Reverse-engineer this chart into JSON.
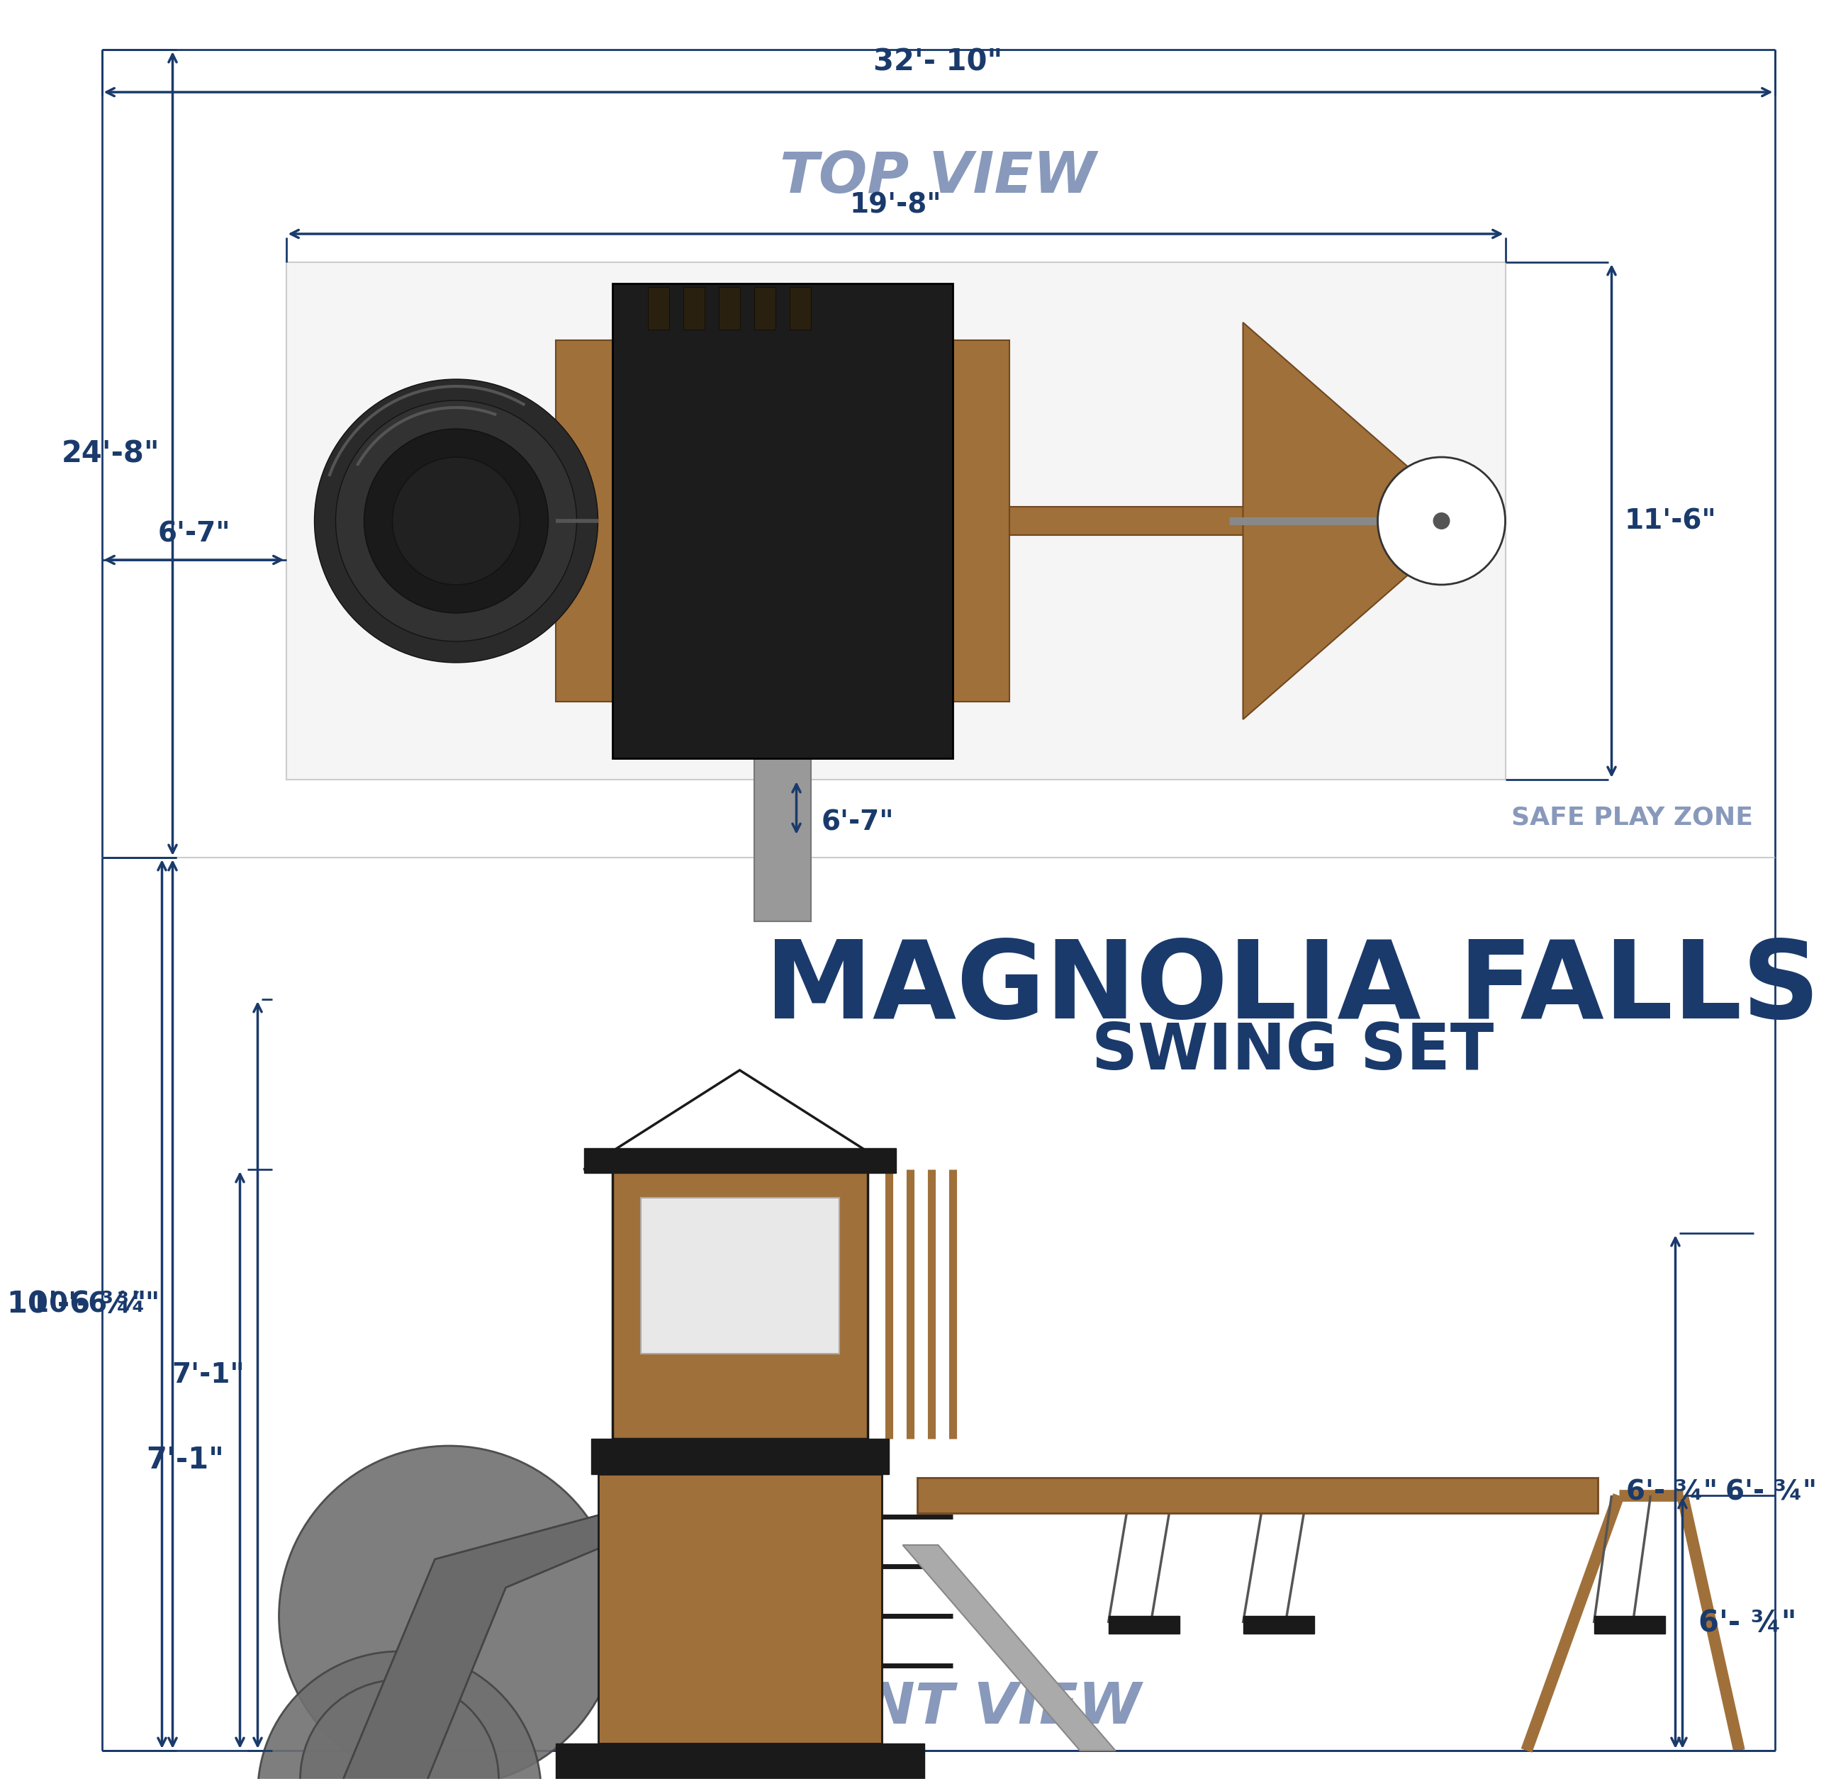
{
  "bg": "#ffffff",
  "dc": "#1a3a6b",
  "dcl": "#8899bb",
  "title_main": "MAGNOLIA FALLS",
  "title_sub": "SWING SET",
  "top_view_label": "TOP VIEW",
  "front_view_label": "FRONT VIEW",
  "safe_play_zone": "SAFE PLAY ZONE",
  "d_32_10": "32'- 10\"",
  "d_19_8": "19'-8\"",
  "d_24_8": "24'-8\"",
  "d_6_7": "6'-7\"",
  "d_11_6": "11'-6\"",
  "d_6_7b": "6'-7\"",
  "d_10_6_34": "10'-6 ¾\"",
  "d_7_1": "7'-1\"",
  "d_6_34": "6'- ¾\"",
  "brown": "#a0703a",
  "black": "#1a1a1a",
  "gray_slide": "#888888",
  "gray_dark": "#555555"
}
